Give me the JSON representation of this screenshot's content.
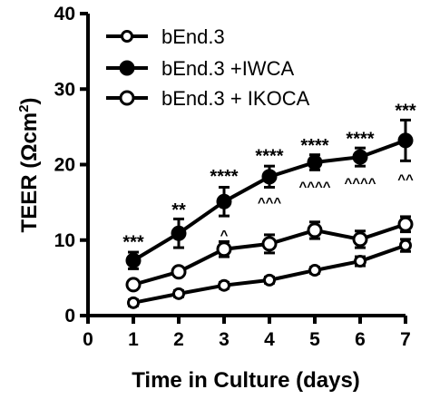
{
  "chart_data": {
    "type": "line",
    "x": [
      1,
      2,
      3,
      4,
      5,
      6,
      7
    ],
    "xlabel": "Time in  Culture (days)",
    "ylabel": "TEER (Ωcm²)",
    "ylabel_parts": {
      "main": "TEER (Ωcm",
      "sup": "2",
      "close": ")"
    },
    "xlim": [
      0,
      7
    ],
    "ylim": [
      0,
      40
    ],
    "xticks": [
      0,
      1,
      2,
      3,
      4,
      5,
      6,
      7
    ],
    "yticks": [
      0,
      10,
      20,
      30,
      40
    ],
    "grid": false,
    "legend_position": "top-left",
    "series": [
      {
        "name": "bEnd.3",
        "marker": "open-small",
        "values": [
          1.7,
          2.9,
          4.0,
          4.7,
          6.0,
          7.2,
          9.3
        ],
        "errors": [
          0.4,
          0.4,
          0.4,
          0.4,
          0.4,
          0.6,
          0.8
        ]
      },
      {
        "name": "bEnd.3 +IWCA",
        "marker": "filled",
        "values": [
          7.3,
          10.9,
          15.1,
          18.4,
          20.3,
          21.0,
          23.2
        ],
        "errors": [
          1.1,
          1.9,
          1.9,
          1.4,
          1.0,
          1.2,
          2.7
        ]
      },
      {
        "name": "bEnd.3 + IKOCA",
        "marker": "open",
        "values": [
          4.1,
          5.8,
          8.8,
          9.5,
          11.3,
          10.1,
          12.1
        ],
        "errors": [
          0.4,
          0.5,
          1.0,
          1.2,
          1.1,
          1.1,
          1.0
        ]
      }
    ],
    "annotations": [
      {
        "x": 1,
        "y": 9.9,
        "text": "***",
        "kind": "star"
      },
      {
        "x": 2,
        "y": 14.2,
        "text": "**",
        "kind": "star"
      },
      {
        "x": 3,
        "y": 18.6,
        "text": "****",
        "kind": "star"
      },
      {
        "x": 4,
        "y": 21.3,
        "text": "****",
        "kind": "star"
      },
      {
        "x": 5,
        "y": 22.7,
        "text": "****",
        "kind": "star"
      },
      {
        "x": 6,
        "y": 23.6,
        "text": "****",
        "kind": "star"
      },
      {
        "x": 7,
        "y": 27.3,
        "text": "***",
        "kind": "star"
      },
      {
        "x": 3,
        "y": 11.3,
        "text": "^",
        "kind": "caret"
      },
      {
        "x": 4,
        "y": 15.6,
        "text": "^^^",
        "kind": "caret"
      },
      {
        "x": 5,
        "y": 17.7,
        "text": "^^^^",
        "kind": "caret"
      },
      {
        "x": 6,
        "y": 18.2,
        "text": "^^^^",
        "kind": "caret"
      },
      {
        "x": 7,
        "y": 18.7,
        "text": "^^",
        "kind": "caret"
      }
    ]
  }
}
